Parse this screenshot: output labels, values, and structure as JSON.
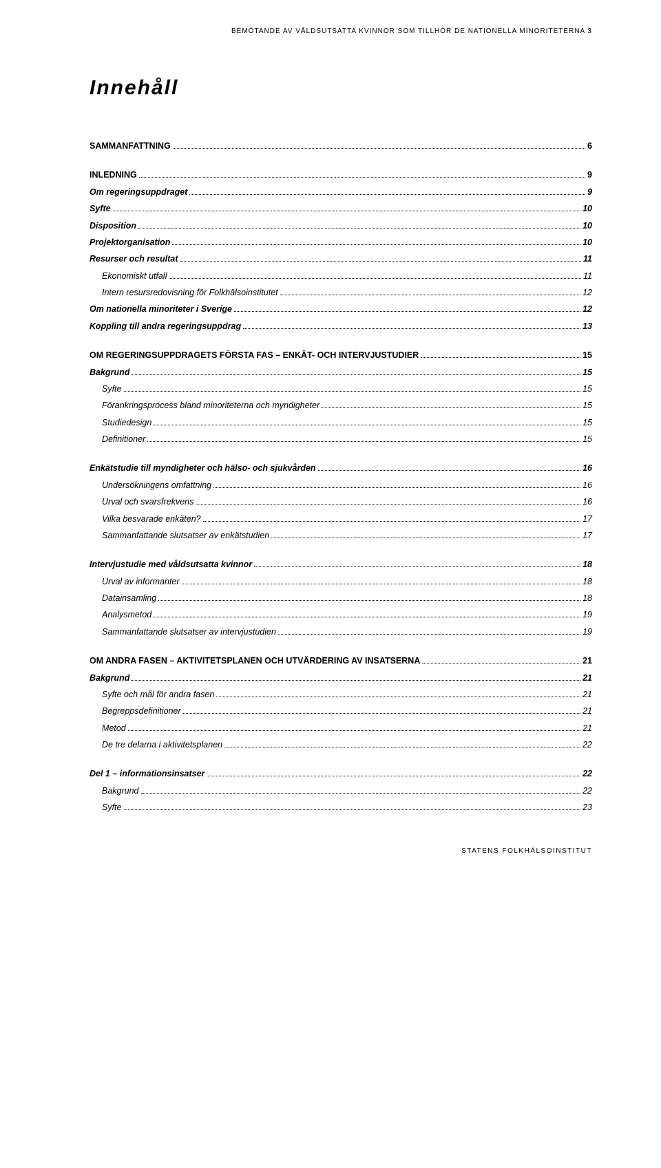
{
  "header": "BEMÖTANDE AV VÅLDSUTSATTA KVINNOR SOM TILLHÖR DE NATIONELLA MINORITETERNA 3",
  "title": "Innehåll",
  "footer": "STATENS FOLKHÄLSOINSTITUT",
  "toc": [
    {
      "label": "SAMMANFATTNING",
      "page": "6",
      "level": 1
    },
    {
      "label": "INLEDNING",
      "page": "9",
      "level": 1
    },
    {
      "label": "Om regeringsuppdraget",
      "page": "9",
      "level": 2
    },
    {
      "label": "Syfte",
      "page": "10",
      "level": 2
    },
    {
      "label": "Disposition",
      "page": "10",
      "level": 2
    },
    {
      "label": "Projektorganisation",
      "page": "10",
      "level": 2
    },
    {
      "label": "Resurser och resultat",
      "page": "11",
      "level": 2
    },
    {
      "label": "Ekonomiskt utfall",
      "page": "11",
      "level": 3
    },
    {
      "label": "Intern resursredovisning för Folkhälsoinstitutet",
      "page": "12",
      "level": 3
    },
    {
      "label": "Om nationella minoriteter i Sverige",
      "page": "12",
      "level": 2
    },
    {
      "label": "Koppling till andra regeringsuppdrag",
      "page": "13",
      "level": 2
    },
    {
      "label": "OM REGERINGSUPPDRAGETS FÖRSTA FAS – ENKÄT- OCH INTERVJUSTUDIER",
      "page": "15",
      "level": 1
    },
    {
      "label": "Bakgrund",
      "page": "15",
      "level": 2
    },
    {
      "label": "Syfte",
      "page": "15",
      "level": 3
    },
    {
      "label": "Förankringsprocess bland minoriteterna och myndigheter",
      "page": "15",
      "level": 3
    },
    {
      "label": "Studiedesign",
      "page": "15",
      "level": 3
    },
    {
      "label": "Definitioner",
      "page": "15",
      "level": 3
    },
    {
      "label": "Enkätstudie till myndigheter och hälso- och sjukvården",
      "page": "16",
      "level": 2,
      "gap": true
    },
    {
      "label": "Undersökningens omfattning",
      "page": "16",
      "level": 3
    },
    {
      "label": "Urval och svarsfrekvens",
      "page": "16",
      "level": 3
    },
    {
      "label": "Vilka besvarade enkäten?",
      "page": "17",
      "level": 3
    },
    {
      "label": "Sammanfattande slutsatser av enkätstudien",
      "page": "17",
      "level": 3
    },
    {
      "label": "Intervjustudie med våldsutsatta kvinnor",
      "page": "18",
      "level": 2,
      "gap": true
    },
    {
      "label": "Urval av informanter",
      "page": "18",
      "level": 3
    },
    {
      "label": "Datainsamling",
      "page": "18",
      "level": 3
    },
    {
      "label": "Analysmetod",
      "page": "19",
      "level": 3
    },
    {
      "label": "Sammanfattande slutsatser av intervjustudien",
      "page": "19",
      "level": 3
    },
    {
      "label": "OM ANDRA FASEN – AKTIVITETSPLANEN OCH UTVÄRDERING AV INSATSERNA",
      "page": "21",
      "level": 1
    },
    {
      "label": "Bakgrund",
      "page": "21",
      "level": 2
    },
    {
      "label": "Syfte och mål för andra fasen",
      "page": "21",
      "level": 3
    },
    {
      "label": "Begreppsdefinitioner",
      "page": "21",
      "level": 3
    },
    {
      "label": "Metod",
      "page": "21",
      "level": 3
    },
    {
      "label": "De tre delarna i aktivitetsplanen",
      "page": "22",
      "level": 3
    },
    {
      "label": "Del 1 – informationsinsatser",
      "page": "22",
      "level": 2,
      "gap": true
    },
    {
      "label": "Bakgrund",
      "page": "22",
      "level": 3
    },
    {
      "label": "Syfte",
      "page": "23",
      "level": 3
    }
  ]
}
